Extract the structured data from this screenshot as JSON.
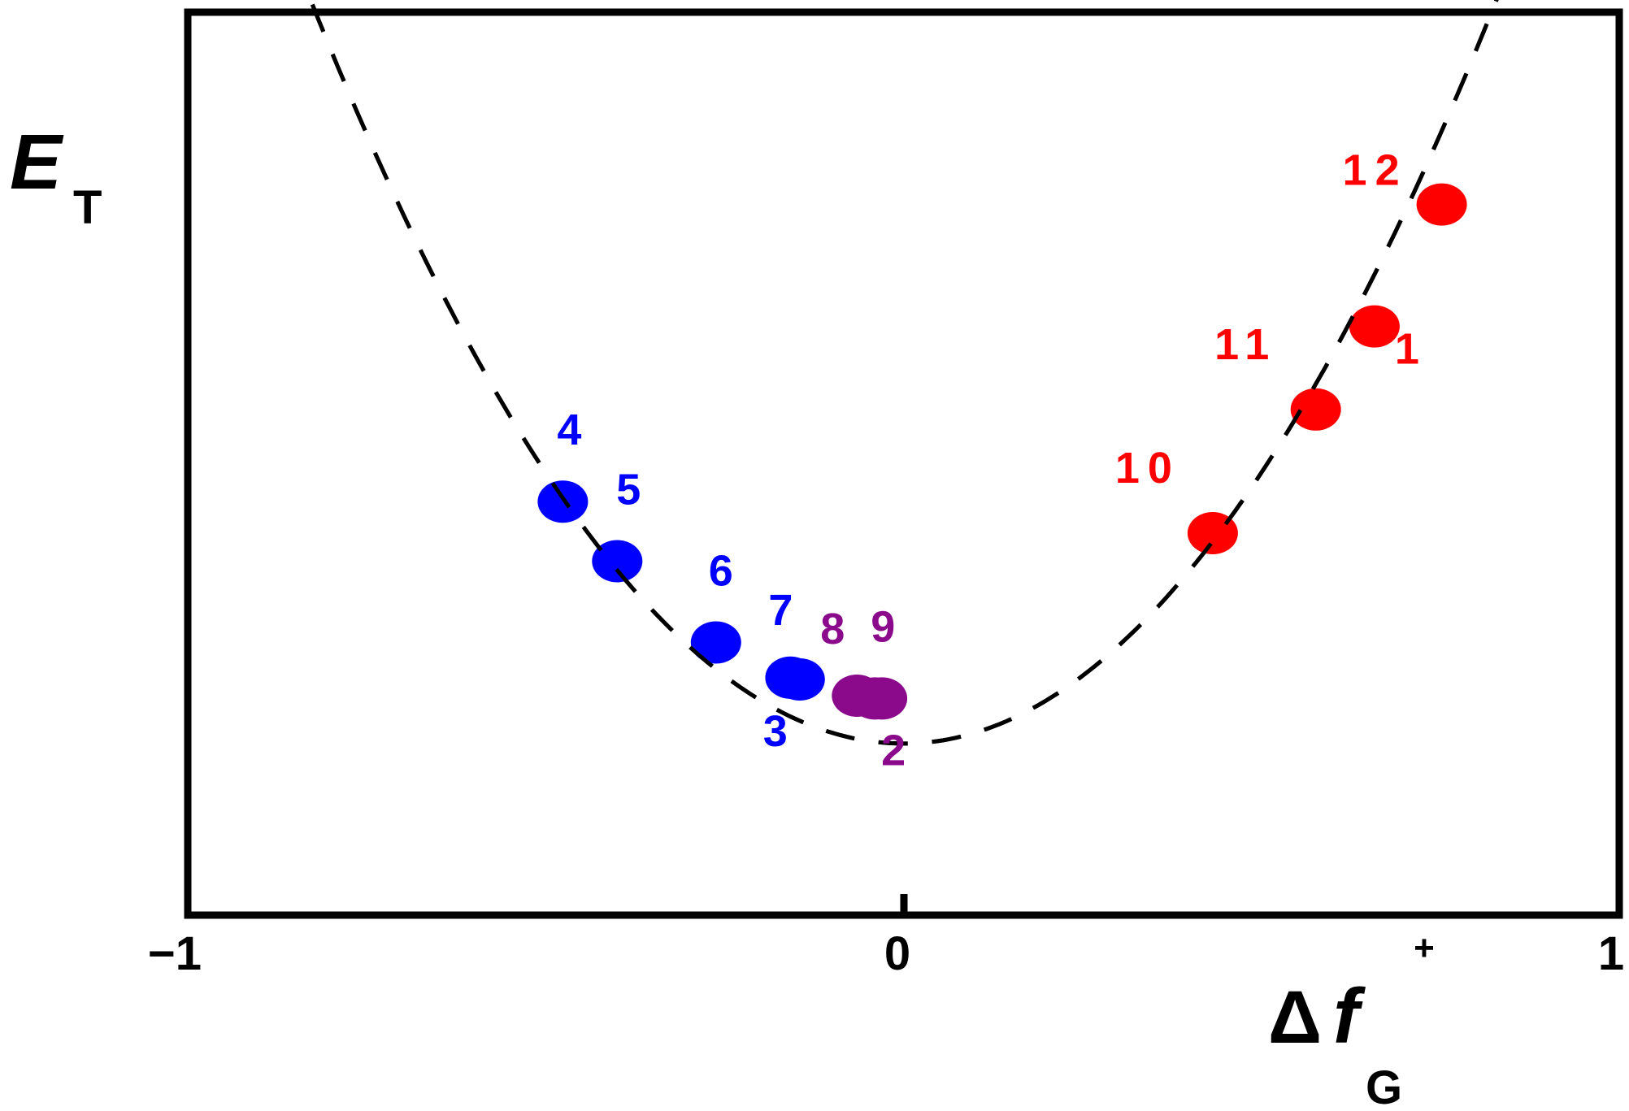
{
  "chart_data": {
    "type": "scatter",
    "ylabel": {
      "main": "E",
      "sub": "T"
    },
    "xlabel": {
      "main": "Δ",
      "italic": "f",
      "sub": "G"
    },
    "xlim": [
      -1,
      1
    ],
    "x_ticks": [
      "−1",
      "0",
      "1"
    ],
    "extra_tick": "+",
    "curve": {
      "style": "dashed",
      "shape": "parabola",
      "vertex": [
        0,
        0.19
      ],
      "x_range": [
        -0.88,
        0.9
      ]
    },
    "colors": {
      "blue": "#0000ff",
      "purple": "#8b0a8b",
      "red": "#ff0000"
    },
    "series": [
      {
        "color_key": "blue",
        "points": [
          {
            "label": "4",
            "x": -0.476,
            "y": 0.458
          },
          {
            "label": "5",
            "x": -0.4,
            "y": 0.392
          },
          {
            "label": "6",
            "x": -0.262,
            "y": 0.302
          },
          {
            "label": "7",
            "x": -0.158,
            "y": 0.263
          },
          {
            "label": "3",
            "x": -0.145,
            "y": 0.261
          }
        ]
      },
      {
        "color_key": "purple",
        "points": [
          {
            "label": "8",
            "x": -0.065,
            "y": 0.243
          },
          {
            "label": "9",
            "x": -0.04,
            "y": 0.24
          },
          {
            "label": "2",
            "x": -0.03,
            "y": 0.24
          }
        ]
      },
      {
        "color_key": "red",
        "points": [
          {
            "label": "10",
            "x": 0.432,
            "y": 0.423
          },
          {
            "label": "11",
            "x": 0.576,
            "y": 0.56
          },
          {
            "label": "1",
            "x": 0.658,
            "y": 0.652
          },
          {
            "label": "12",
            "x": 0.752,
            "y": 0.787
          }
        ]
      }
    ]
  }
}
